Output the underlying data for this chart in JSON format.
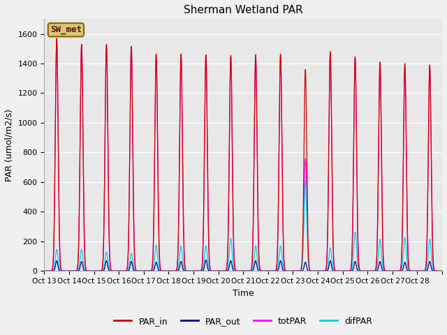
{
  "title": "Sherman Wetland PAR",
  "ylabel": "PAR (umol/m2/s)",
  "xlabel": "Time",
  "bg_color": "#e8e8e8",
  "fig_bg_color": "#f0f0f0",
  "legend_label": "SW_met",
  "legend_bg": "#d4c97a",
  "legend_border": "#8b6000",
  "legend_text_color": "#5a1500",
  "series": {
    "PAR_in": {
      "color": "#cc0000",
      "lw": 0.9
    },
    "PAR_out": {
      "color": "#000099",
      "lw": 0.9
    },
    "totPAR": {
      "color": "#ff00ff",
      "lw": 0.9
    },
    "difPAR": {
      "color": "#00ccee",
      "lw": 0.9
    }
  },
  "ylim": [
    0,
    1700
  ],
  "yticks": [
    0,
    200,
    400,
    600,
    800,
    1000,
    1200,
    1400,
    1600
  ],
  "start_day": 13,
  "n_days": 16,
  "peak_PAR_in": [
    1570,
    1530,
    1530,
    1515,
    1465,
    1465,
    1460,
    1455,
    1460,
    1465,
    1360,
    1480,
    1445,
    1410,
    1400,
    1390
  ],
  "peak_totPAR": [
    1565,
    1525,
    1525,
    1510,
    1455,
    1450,
    1455,
    1445,
    1450,
    1455,
    760,
    1470,
    1440,
    1395,
    1380,
    1375
  ],
  "peak_difPAR": [
    145,
    145,
    130,
    120,
    175,
    170,
    170,
    220,
    170,
    170,
    610,
    155,
    265,
    215,
    225,
    215
  ],
  "peak_PAR_out": [
    70,
    65,
    70,
    65,
    60,
    65,
    75,
    70,
    70,
    70,
    60,
    70,
    65,
    65,
    60,
    65
  ]
}
